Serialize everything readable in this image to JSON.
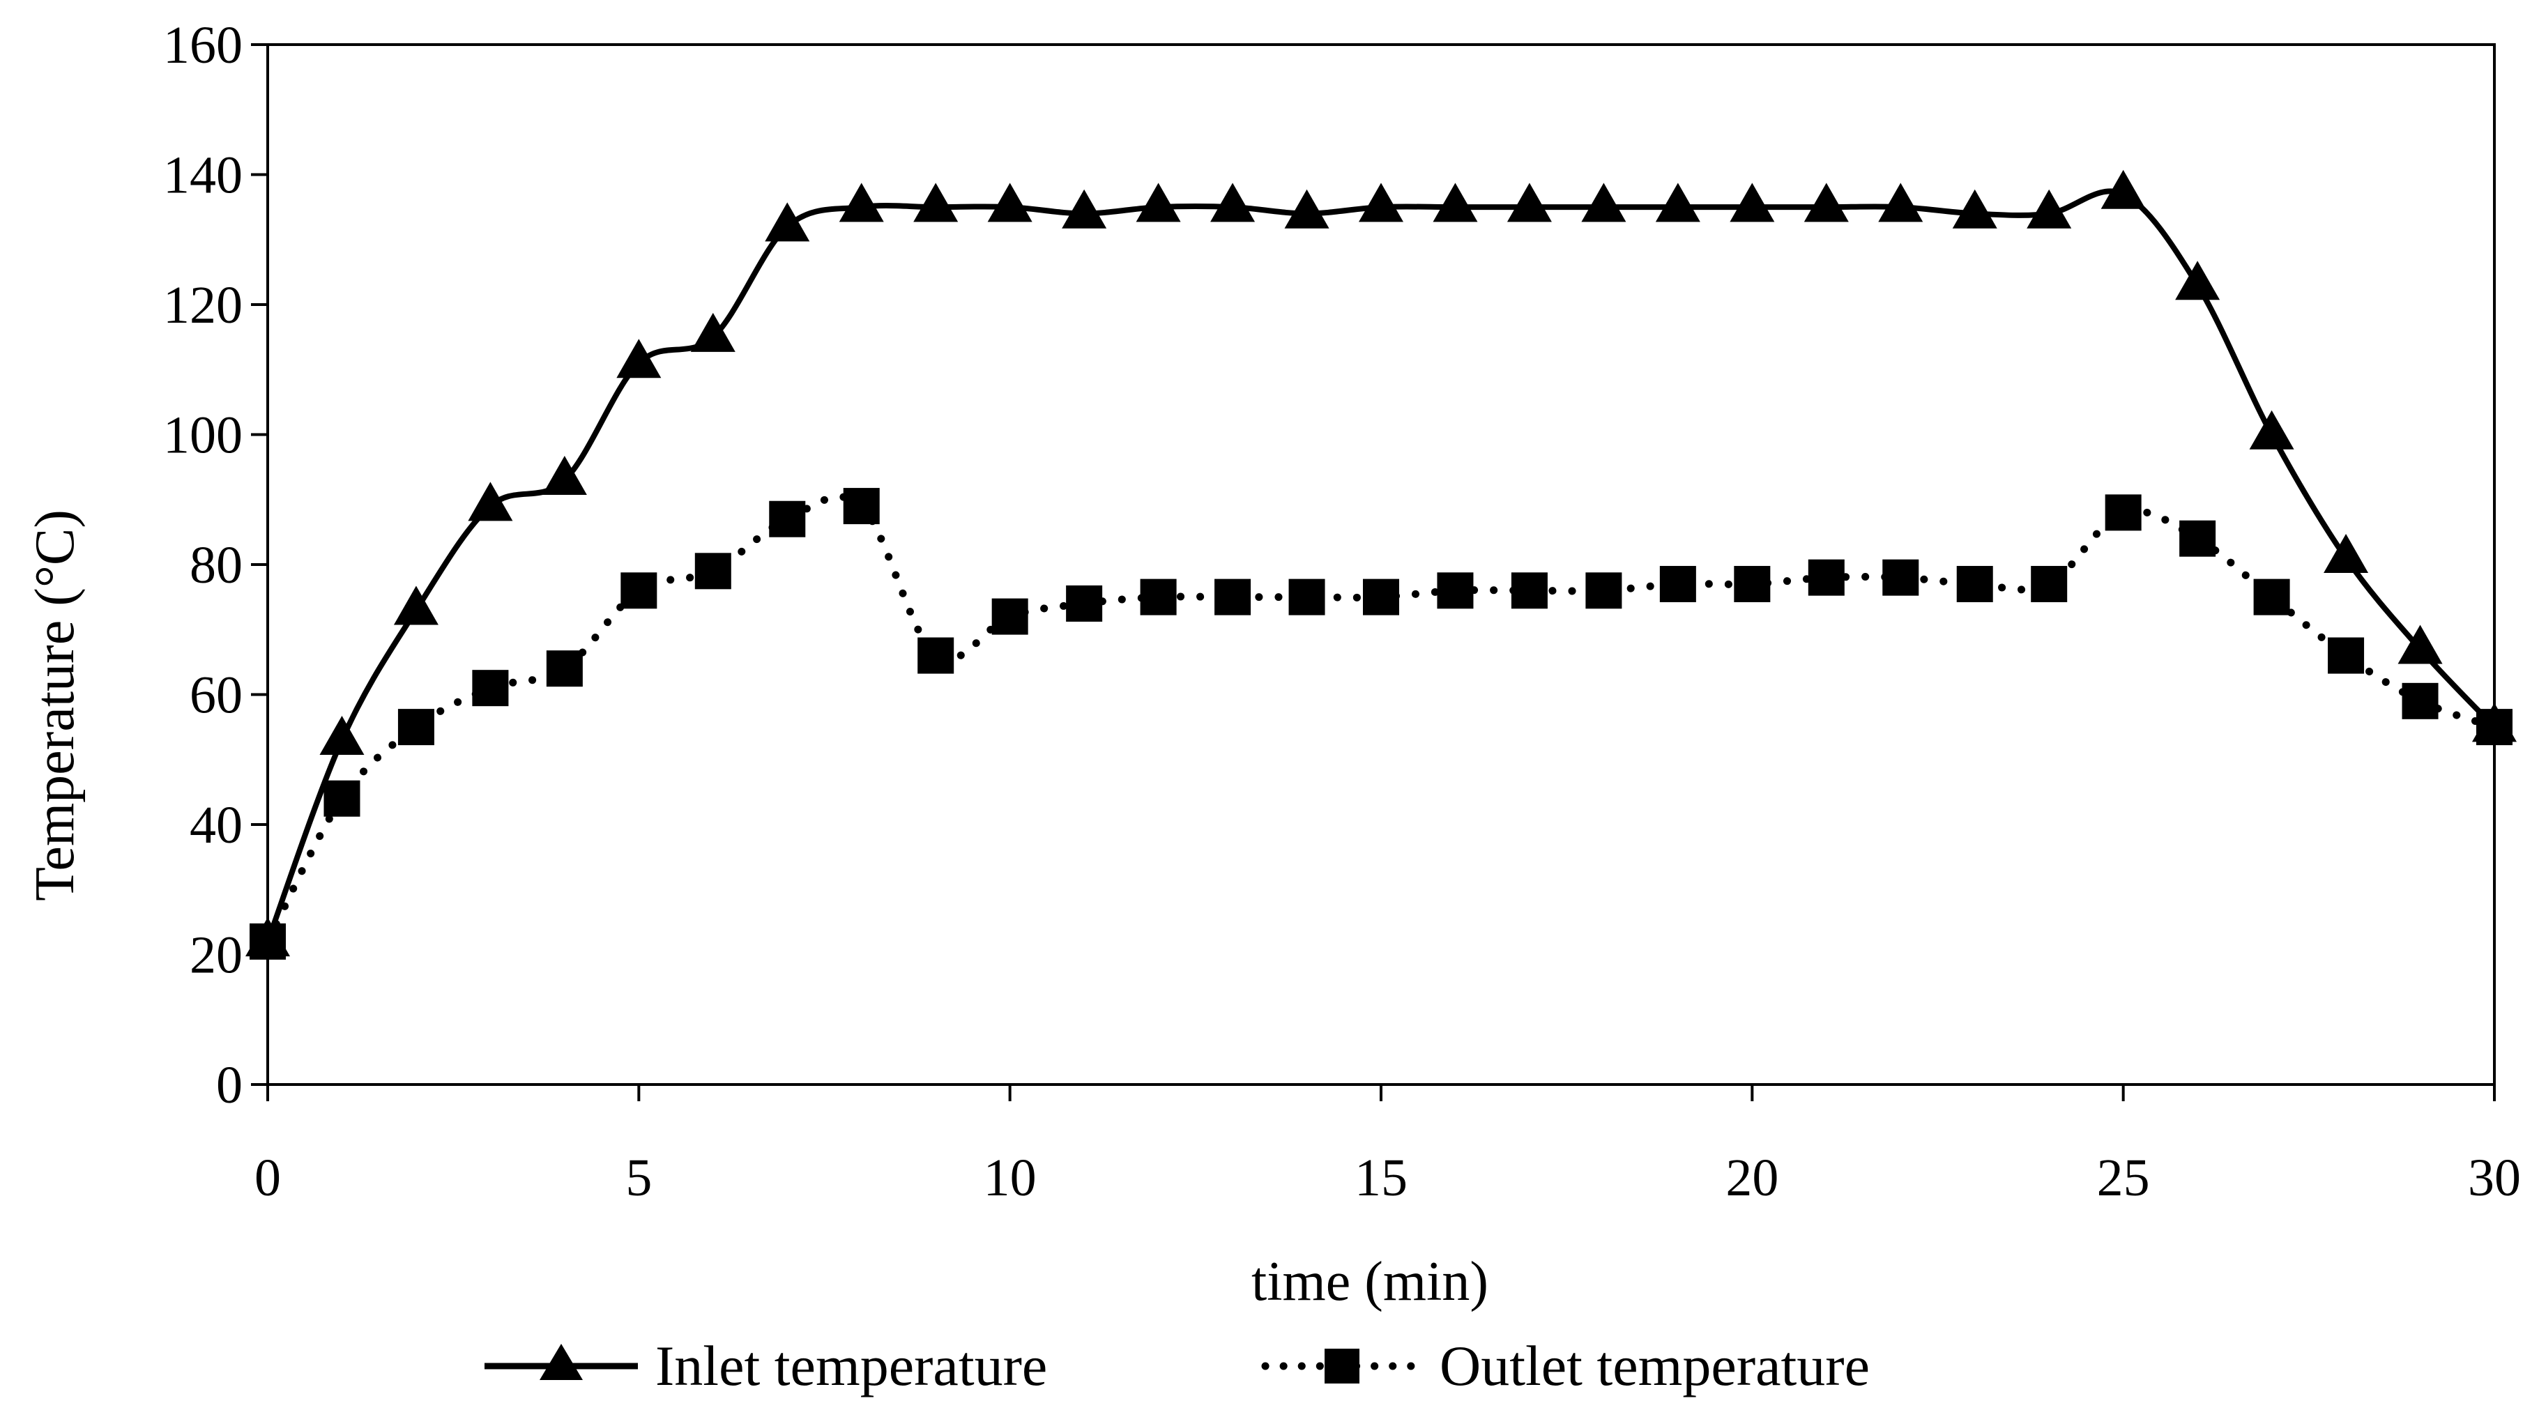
{
  "chart_data": {
    "type": "line",
    "title": "",
    "xlabel": "time (min)",
    "ylabel": "Temperature (°C)",
    "xlim": [
      0,
      30
    ],
    "ylim": [
      0,
      160
    ],
    "xticks": [
      0,
      5,
      10,
      15,
      20,
      25,
      30
    ],
    "yticks": [
      0,
      20,
      40,
      60,
      80,
      100,
      120,
      140,
      160
    ],
    "grid": false,
    "legend_position": "bottom",
    "x": [
      0,
      1,
      2,
      3,
      4,
      5,
      6,
      7,
      8,
      9,
      10,
      11,
      12,
      13,
      14,
      15,
      16,
      17,
      18,
      19,
      20,
      21,
      22,
      23,
      24,
      25,
      26,
      27,
      28,
      29,
      30
    ],
    "series": [
      {
        "name": "Inlet temperature",
        "line_style": "solid",
        "marker": "triangle",
        "color": "#000000",
        "values": [
          22,
          53,
          73,
          89,
          93,
          111,
          115,
          132,
          135,
          135,
          135,
          134,
          135,
          135,
          134,
          135,
          135,
          135,
          135,
          135,
          135,
          135,
          135,
          134,
          134,
          137,
          123,
          100,
          81,
          67,
          55
        ]
      },
      {
        "name": "Outlet temperature",
        "line_style": "dotted",
        "marker": "square",
        "color": "#000000",
        "values": [
          22,
          44,
          55,
          61,
          64,
          76,
          79,
          87,
          89,
          66,
          72,
          74,
          75,
          75,
          75,
          75,
          76,
          76,
          76,
          77,
          77,
          78,
          78,
          77,
          77,
          88,
          84,
          75,
          66,
          59,
          55
        ]
      }
    ]
  }
}
